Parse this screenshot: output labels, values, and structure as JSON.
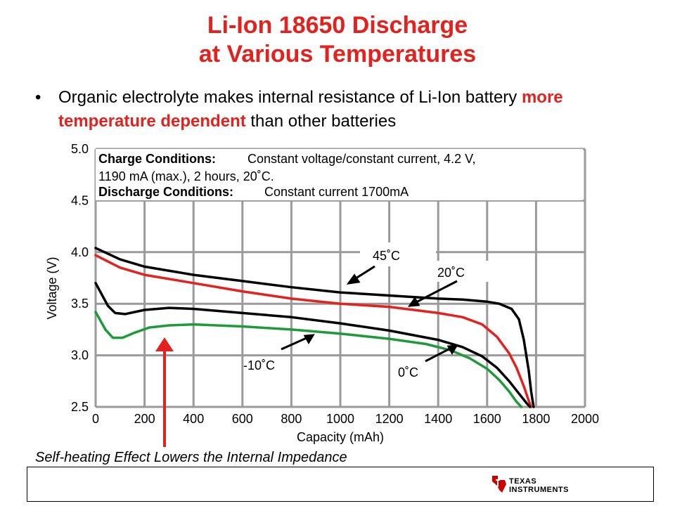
{
  "slide": {
    "title_line1": "Li-Ion 18650 Discharge",
    "title_line2": "at Various Temperatures",
    "bullet_part1": "Organic electrolyte makes internal resistance of Li-Ion battery ",
    "bullet_highlight": "more temperature dependent",
    "bullet_part2": " than other batteries",
    "footnote": "Self-heating Effect Lowers the Internal Impedance",
    "logo_line1": "Texas",
    "logo_line2": "Instruments"
  },
  "chart_data": {
    "type": "line",
    "xlabel": "Capacity (mAh)",
    "ylabel": "Voltage (V)",
    "xlim": [
      0,
      2000
    ],
    "ylim": [
      2.5,
      5.0
    ],
    "x_ticks": [
      "0",
      "200",
      "400",
      "600",
      "800",
      "1000",
      "1200",
      "1400",
      "1600",
      "1800",
      "2000"
    ],
    "y_ticks": [
      "2.5",
      "3.0",
      "3.5",
      "4.0",
      "4.5",
      "5.0"
    ],
    "grid": true,
    "conditions": {
      "charge_label": "Charge Conditions:",
      "charge_text": "Constant voltage/constant current, 4.2 V,",
      "charge_text2": "1190 mA (max.), 2 hours, 20˚C.",
      "discharge_label": "Discharge Conditions:",
      "discharge_text": "Constant current 1700mA"
    },
    "series": [
      {
        "name": "45˚C",
        "color": "#000000",
        "x": [
          0,
          100,
          200,
          400,
          600,
          800,
          1000,
          1200,
          1400,
          1500,
          1600,
          1650,
          1700,
          1730,
          1750,
          1770,
          1780,
          1790
        ],
        "y": [
          4.04,
          3.93,
          3.86,
          3.78,
          3.72,
          3.66,
          3.61,
          3.58,
          3.55,
          3.54,
          3.52,
          3.5,
          3.45,
          3.35,
          3.15,
          2.85,
          2.65,
          2.5
        ]
      },
      {
        "name": "20˚C",
        "color": "#e3211d",
        "x": [
          0,
          100,
          200,
          400,
          600,
          800,
          1000,
          1200,
          1400,
          1500,
          1580,
          1640,
          1690,
          1720,
          1750,
          1770,
          1780
        ],
        "y": [
          3.97,
          3.85,
          3.78,
          3.7,
          3.62,
          3.55,
          3.5,
          3.47,
          3.41,
          3.37,
          3.3,
          3.18,
          3.02,
          2.88,
          2.7,
          2.56,
          2.5
        ]
      },
      {
        "name": "0˚C",
        "color": "#000000",
        "x": [
          0,
          50,
          80,
          120,
          200,
          300,
          400,
          600,
          800,
          1000,
          1200,
          1400,
          1500,
          1580,
          1640,
          1690,
          1730,
          1760,
          1775
        ],
        "y": [
          3.7,
          3.48,
          3.41,
          3.4,
          3.44,
          3.46,
          3.45,
          3.41,
          3.37,
          3.31,
          3.24,
          3.15,
          3.08,
          2.99,
          2.88,
          2.75,
          2.63,
          2.54,
          2.5
        ]
      },
      {
        "name": "-10˚C",
        "color": "#1e9a3a",
        "x": [
          0,
          40,
          70,
          110,
          160,
          220,
          300,
          400,
          600,
          800,
          1000,
          1200,
          1350,
          1450,
          1530,
          1600,
          1650,
          1690,
          1720,
          1740
        ],
        "y": [
          3.42,
          3.25,
          3.17,
          3.17,
          3.22,
          3.27,
          3.29,
          3.3,
          3.28,
          3.25,
          3.21,
          3.16,
          3.11,
          3.05,
          2.97,
          2.87,
          2.76,
          2.65,
          2.55,
          2.5
        ]
      }
    ],
    "annotations": [
      {
        "text": "45˚C"
      },
      {
        "text": "20˚C"
      },
      {
        "text": "-10˚C"
      },
      {
        "text": "0˚C"
      }
    ]
  }
}
